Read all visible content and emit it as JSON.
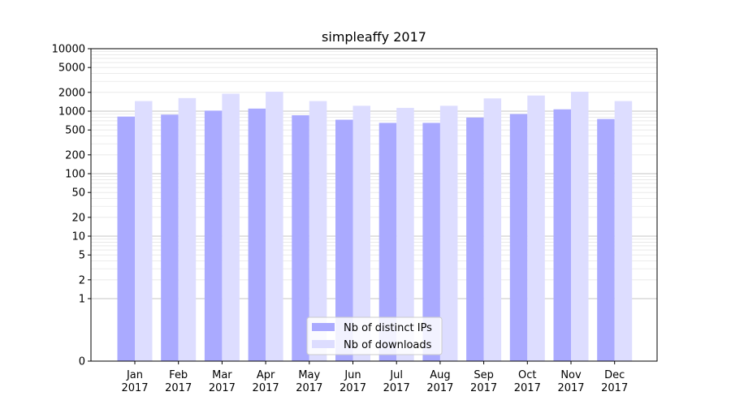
{
  "chart_data": {
    "type": "bar",
    "title": "simpleaffy 2017",
    "xlabel": "",
    "ylabel": "",
    "y_scale": "symlog",
    "ylim": [
      0,
      10000
    ],
    "y_ticks": [
      0,
      1,
      2,
      5,
      10,
      20,
      50,
      100,
      200,
      500,
      1000,
      2000,
      5000,
      10000
    ],
    "y_tick_labels": [
      "0",
      "1",
      "2",
      "5",
      "10",
      "20",
      "50",
      "100",
      "200",
      "500",
      "1000",
      "2000",
      "5000",
      "10000"
    ],
    "grid": true,
    "legend_position": "bottom-center",
    "categories": [
      [
        "Jan",
        "2017"
      ],
      [
        "Feb",
        "2017"
      ],
      [
        "Mar",
        "2017"
      ],
      [
        "Apr",
        "2017"
      ],
      [
        "May",
        "2017"
      ],
      [
        "Jun",
        "2017"
      ],
      [
        "Jul",
        "2017"
      ],
      [
        "Aug",
        "2017"
      ],
      [
        "Sep",
        "2017"
      ],
      [
        "Oct",
        "2017"
      ],
      [
        "Nov",
        "2017"
      ],
      [
        "Dec",
        "2017"
      ]
    ],
    "series": [
      {
        "name": "Nb of distinct IPs",
        "color": "#aaaaff",
        "values": [
          820,
          880,
          1020,
          1100,
          860,
          730,
          650,
          650,
          790,
          900,
          1070,
          750
        ]
      },
      {
        "name": "Nb of downloads",
        "color": "#ddddff",
        "values": [
          1450,
          1620,
          1900,
          2050,
          1450,
          1220,
          1130,
          1220,
          1600,
          1780,
          2050,
          1450
        ]
      }
    ]
  }
}
